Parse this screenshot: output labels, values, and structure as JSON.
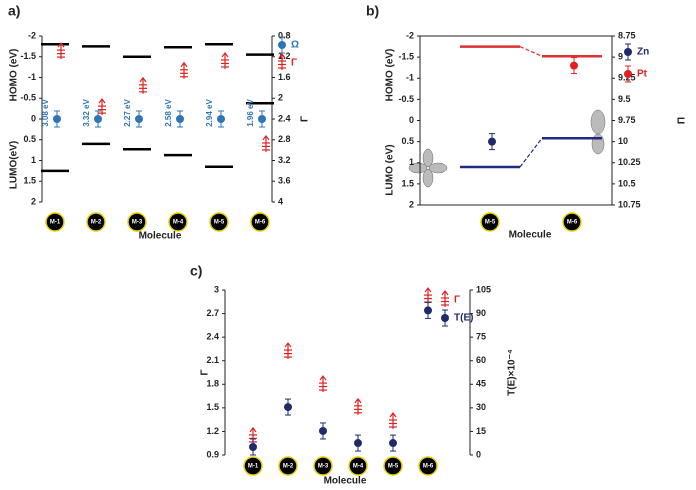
{
  "chart_data": [
    {
      "type": "energy-levels",
      "panel_label": "a)",
      "ylabel_top": "HOMO (eV)",
      "ylabel_bottom": "LUMO(eV)",
      "y2label": "Γ",
      "xlabel": "Molecule",
      "categories": [
        "M-1",
        "M-2",
        "M-3",
        "M-4",
        "M-5",
        "M-6"
      ],
      "ylim": [
        2,
        -2
      ],
      "yticks": [
        -2,
        -1.5,
        -1,
        -0.5,
        0,
        0.5,
        1,
        1.5,
        2
      ],
      "y2lim": [
        4,
        0.8
      ],
      "y2ticks": [
        0.8,
        1.2,
        1.6,
        2,
        2.4,
        2.8,
        3.2,
        3.6,
        4
      ],
      "levels": [
        {
          "color": "#000000",
          "values": [
            -1.8,
            -1.75,
            -1.5,
            -1.73,
            -1.8,
            -1.55
          ]
        },
        {
          "color": "#000000",
          "values": [
            1.25,
            0.6,
            0.73,
            0.87,
            1.15,
            -0.38
          ]
        }
      ],
      "gap_labels": [
        "3.08 eV",
        "3.32 eV",
        "2.27 eV",
        "2.58 eV",
        "2.94 eV",
        "1.96 eV"
      ],
      "series": [
        {
          "name": "Ω",
          "color": "#2e75b6",
          "marker": "circle",
          "values": [
            0,
            0,
            0,
            0,
            0,
            0
          ]
        },
        {
          "name": "Γ",
          "color": "#e02020",
          "marker": "dagger",
          "axis": "y2",
          "values": [
            1.11,
            2.19,
            1.78,
            1.49,
            1.3,
            2.9
          ]
        }
      ]
    },
    {
      "type": "energy-levels",
      "panel_label": "b)",
      "ylabel_top": "HOMO (eV)",
      "ylabel_bottom": "LUMO (eV)",
      "y2label": "Π",
      "xlabel": "Molecule",
      "categories": [
        "M-5",
        "M-6"
      ],
      "ylim": [
        2,
        -2
      ],
      "yticks": [
        -2,
        -1.5,
        -1,
        -0.5,
        0,
        0.5,
        1,
        1.5,
        2
      ],
      "y2lim": [
        10.75,
        8.75
      ],
      "y2ticks": [
        8.75,
        9,
        9.25,
        9.5,
        9.75,
        10,
        10.25,
        10.5,
        10.75
      ],
      "levels": [
        {
          "color": "#e03030",
          "connected": true,
          "values": [
            -1.75,
            -1.52
          ]
        },
        {
          "color": "#1f2a80",
          "connected": true,
          "values": [
            1.1,
            0.42
          ]
        }
      ],
      "series": [
        {
          "name": "Zn",
          "color": "#1f2a6b",
          "marker": "circle",
          "axis": "y2",
          "values": [
            10.0,
            null
          ]
        },
        {
          "name": "Pt",
          "color": "#e02020",
          "marker": "circle",
          "axis": "y2",
          "values": [
            null,
            9.1
          ]
        }
      ]
    },
    {
      "type": "scatter-categories",
      "panel_label": "c)",
      "ylabel": "Γ",
      "y2label": "T(E)×10⁻⁴",
      "xlabel": "Molecule",
      "categories": [
        "M-1",
        "M-2",
        "M-3",
        "M-4",
        "M-5",
        "M-6"
      ],
      "ylim": [
        0.9,
        3
      ],
      "yticks": [
        0.9,
        1.2,
        1.5,
        1.8,
        2.1,
        2.4,
        2.7,
        3
      ],
      "y2lim": [
        0,
        105
      ],
      "y2ticks": [
        0,
        15,
        30,
        45,
        60,
        75,
        90,
        105
      ],
      "series": [
        {
          "name": "Γ",
          "color": "#e02020",
          "marker": "dagger",
          "values": [
            1.13,
            2.21,
            1.79,
            1.5,
            1.32,
            2.91
          ]
        },
        {
          "name": "T(E)",
          "color": "#1f2a6b",
          "marker": "circle",
          "axis": "y2",
          "values": [
            5.1,
            30.5,
            15.3,
            7.6,
            7.6,
            92
          ]
        }
      ]
    }
  ]
}
